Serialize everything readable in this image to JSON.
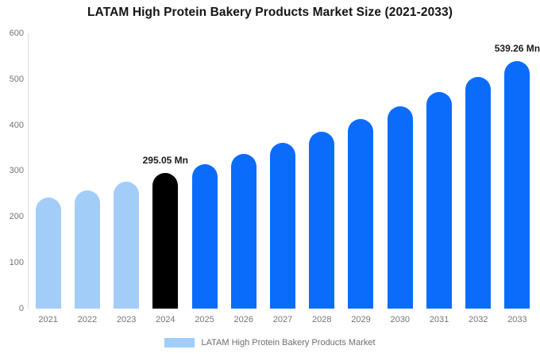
{
  "title": "LATAM High Protein Bakery Products Market Size (2021-2033)",
  "legend": {
    "label": "LATAM High Protein Bakery Products Market",
    "swatch_color": "#A2CDF9"
  },
  "chart_data": {
    "type": "bar",
    "title": "LATAM High Protein Bakery Products Market Size (2021-2033)",
    "categories": [
      "2021",
      "2022",
      "2023",
      "2024",
      "2025",
      "2026",
      "2027",
      "2028",
      "2029",
      "2030",
      "2031",
      "2032",
      "2033"
    ],
    "values": [
      241.3,
      258.0,
      275.9,
      295.05,
      315.5,
      337.4,
      360.7,
      385.7,
      412.5,
      441.1,
      471.6,
      504.3,
      539.26
    ],
    "unit": "Mn",
    "xlabel": "",
    "ylabel": "",
    "ylim": [
      0,
      600
    ],
    "yticks": [
      "600",
      "500",
      "400",
      "300",
      "200",
      "100",
      "0"
    ],
    "grid": false,
    "legend_position": "bottom",
    "bar_colors": [
      "#A2CDF9",
      "#A2CDF9",
      "#A2CDF9",
      "#000000",
      "#0B6CFB",
      "#0B6CFB",
      "#0B6CFB",
      "#0B6CFB",
      "#0B6CFB",
      "#0B6CFB",
      "#0B6CFB",
      "#0B6CFB",
      "#0B6CFB"
    ],
    "colors": {
      "historical": "#A2CDF9",
      "highlight_current_year": "#000000",
      "forecast": "#0B6CFB",
      "axis_text": "#757575",
      "axis_line": "#dcdcdc"
    },
    "annotations": [
      {
        "category": "2024",
        "text": "295.05 Mn"
      },
      {
        "category": "2033",
        "text": "539.26 Mn"
      }
    ]
  }
}
